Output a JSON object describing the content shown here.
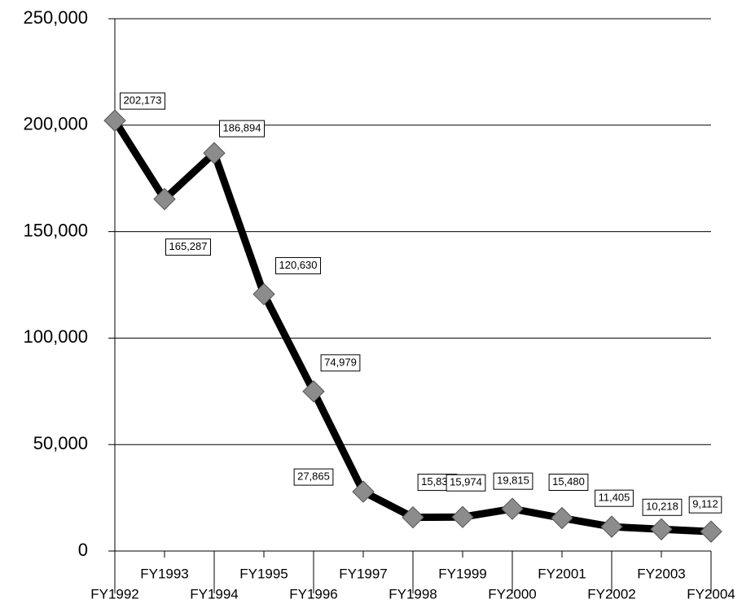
{
  "chart_data": {
    "type": "line",
    "categories": [
      "FY1992",
      "FY1993",
      "FY1994",
      "FY1995",
      "FY1996",
      "FY1997",
      "FY1998",
      "FY1999",
      "FY2000",
      "FY2001",
      "FY2002",
      "FY2003",
      "FY2004"
    ],
    "series": [
      {
        "color": "#000000",
        "marker_color": "#8c8c8c",
        "values": [
          202173,
          165287,
          186894,
          120630,
          74979,
          27865,
          15832,
          15974,
          19815,
          15480,
          11405,
          10218,
          9112
        ],
        "value_labels": [
          "202,173",
          "165,287",
          "186,894",
          "120,630",
          "74,979",
          "27,865",
          "15,832",
          "15,974",
          "19,815",
          "15,480",
          "11,405",
          "10,218",
          "9,112"
        ]
      }
    ],
    "ylim": [
      0,
      250000
    ],
    "yticks": [
      0,
      {
        "value": 50000,
        "label": "50,000"
      },
      {
        "value": 100000,
        "label": "100,000"
      },
      {
        "value": 150000,
        "label": "150,000"
      },
      {
        "value": 200000,
        "label": "200,000"
      },
      {
        "value": 250000,
        "label": "250,000"
      }
    ],
    "grid": true
  }
}
